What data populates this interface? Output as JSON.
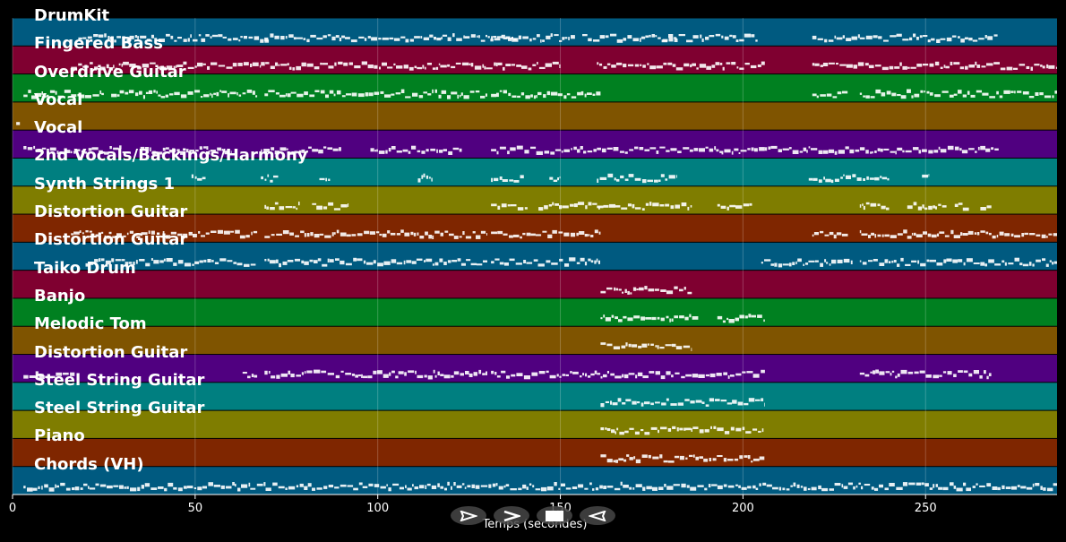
{
  "tracks": [
    {
      "name": "DrumKit",
      "color": "#005a80"
    },
    {
      "name": "Fingered Bass",
      "color": "#7f0030"
    },
    {
      "name": "Overdrive Guitar",
      "color": "#008020"
    },
    {
      "name": "Vocal",
      "color": "#7f5400"
    },
    {
      "name": "Vocal",
      "color": "#500080"
    },
    {
      "name": "2nd Vocals/Backings/Harmony",
      "color": "#007f80"
    },
    {
      "name": "Synth Strings 1",
      "color": "#7f7d00"
    },
    {
      "name": "Distortion Guitar",
      "color": "#7f2600"
    },
    {
      "name": "Distortion Guitar",
      "color": "#005a80"
    },
    {
      "name": "Taiko Drum",
      "color": "#7f0030"
    },
    {
      "name": "Banjo",
      "color": "#008020"
    },
    {
      "name": "Melodic Tom",
      "color": "#7f5400"
    },
    {
      "name": "Distortion Guitar",
      "color": "#500080"
    },
    {
      "name": "Steel String Guitar",
      "color": "#007f80"
    },
    {
      "name": "Steel String Guitar",
      "color": "#7f7d00"
    },
    {
      "name": "Piano",
      "color": "#7f2600"
    },
    {
      "name": "Chords (VH)",
      "color": "#005a80"
    }
  ],
  "xaxis": {
    "label": "Temps (secondes)",
    "ticks": [
      0,
      50,
      100,
      150,
      200,
      250
    ],
    "xlim": [
      0,
      286
    ]
  },
  "controls": [
    {
      "name": "play-icon",
      "glyph": "play"
    },
    {
      "name": "forward-icon",
      "glyph": "forward"
    },
    {
      "name": "stop-icon",
      "glyph": "stop"
    },
    {
      "name": "rewind-icon",
      "glyph": "rewind"
    }
  ],
  "chart_data": {
    "type": "piano-roll",
    "xlabel": "Temps (secondes)",
    "xlim": [
      0,
      286
    ],
    "grid": true,
    "tracks_active_segments": [
      [
        [
          18,
          70
        ],
        [
          69,
          91
        ],
        [
          91,
          138
        ],
        [
          131,
          154
        ],
        [
          156,
          182
        ],
        [
          178,
          204
        ],
        [
          219,
          232
        ],
        [
          232,
          270
        ]
      ],
      [
        [
          16,
          45
        ],
        [
          45,
          68
        ],
        [
          68,
          110
        ],
        [
          110,
          150
        ],
        [
          160,
          186
        ],
        [
          186,
          206
        ],
        [
          219,
          286
        ]
      ],
      [
        [
          3,
          25
        ],
        [
          27,
          67
        ],
        [
          69,
          130
        ],
        [
          131,
          161
        ],
        [
          219,
          229
        ],
        [
          232,
          286
        ]
      ],
      [
        [
          1,
          2
        ]
      ],
      [
        [
          3,
          32
        ],
        [
          35,
          60
        ],
        [
          68,
          90
        ],
        [
          98,
          123
        ],
        [
          131,
          160
        ],
        [
          160,
          206
        ],
        [
          206,
          270
        ]
      ],
      [
        [
          49,
          53
        ],
        [
          68,
          73
        ],
        [
          84,
          87
        ],
        [
          111,
          115
        ],
        [
          131,
          140
        ],
        [
          147,
          150
        ],
        [
          160,
          182
        ],
        [
          218,
          240
        ],
        [
          249,
          251
        ]
      ],
      [
        [
          69,
          79
        ],
        [
          82,
          92
        ],
        [
          131,
          141
        ],
        [
          144,
          161
        ],
        [
          160,
          186
        ],
        [
          193,
          203
        ],
        [
          232,
          240
        ],
        [
          245,
          256
        ],
        [
          258,
          262
        ],
        [
          265,
          268
        ]
      ],
      [
        [
          16,
          67
        ],
        [
          69,
          130
        ],
        [
          131,
          161
        ],
        [
          219,
          229
        ],
        [
          232,
          286
        ]
      ],
      [
        [
          20,
          67
        ],
        [
          69,
          130
        ],
        [
          131,
          161
        ],
        [
          205,
          230
        ],
        [
          232,
          286
        ]
      ],
      [
        [
          161,
          186
        ]
      ],
      [
        [
          161,
          188
        ],
        [
          193,
          206
        ]
      ],
      [
        [
          161,
          186
        ]
      ],
      [
        [
          3,
          17
        ],
        [
          63,
          67
        ],
        [
          69,
          125
        ],
        [
          125,
          130
        ],
        [
          131,
          160
        ],
        [
          160,
          206
        ],
        [
          232,
          268
        ]
      ],
      [
        [
          161,
          206
        ]
      ],
      [
        [
          161,
          206
        ]
      ],
      [
        [
          161,
          206
        ]
      ],
      [
        [
          3,
          286
        ]
      ]
    ]
  }
}
